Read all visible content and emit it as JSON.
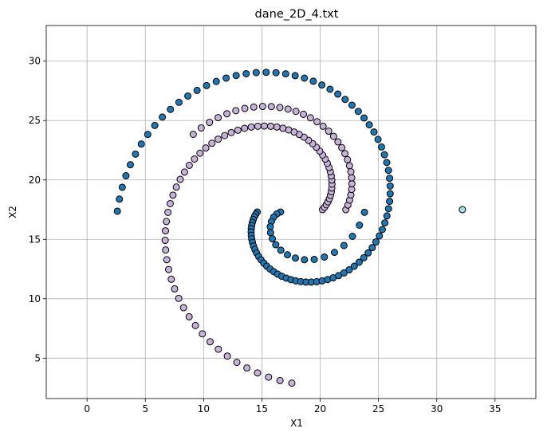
{
  "chart_data": {
    "type": "scatter",
    "title": "dane_2D_4.txt",
    "xlabel": "X1",
    "ylabel": "X2",
    "xlim": [
      -3.5,
      38.5
    ],
    "ylim": [
      1.6,
      33.0
    ],
    "xticks": [
      0,
      5,
      10,
      15,
      20,
      25,
      30,
      35
    ],
    "yticks": [
      5,
      10,
      15,
      20,
      25,
      30
    ],
    "grid": true,
    "legend": "none",
    "colors": {
      "dark_blue": "#1f77b4",
      "lavender": "#c7b3d9",
      "light_cyan": "#a6dde6",
      "edge": "#000000"
    },
    "series": [
      {
        "color": "#1f77b4",
        "spiral_segments": [
          {
            "center": [
              17.2,
              17.3
            ],
            "r0": 2.6,
            "r1": 14.6,
            "a0": 3.14,
            "a1": 9.42
          },
          {
            "center": [
              17.2,
              17.3
            ],
            "r0": 0.6,
            "r1": 6.6,
            "a0": 3.14,
            "a1": 6.28
          }
        ]
      },
      {
        "color": "#c7b3d9",
        "spiral_segments": [
          {
            "center": [
              17.6,
              17.5
            ],
            "r0": 2.6,
            "r1": 14.6,
            "a0": 0.0,
            "a1": 4.71
          },
          {
            "center": [
              17.6,
              17.5
            ],
            "r0": 4.6,
            "r1": 10.6,
            "a0": 0.0,
            "a1": 2.5
          }
        ]
      },
      {
        "color": "#a6dde6",
        "spiral_segments": [
          {
            "center": [
              17.6,
              17.5
            ],
            "r0": 14.6,
            "r1": 14.6,
            "a0": 0.0,
            "a1": 0.0
          }
        ]
      }
    ]
  }
}
